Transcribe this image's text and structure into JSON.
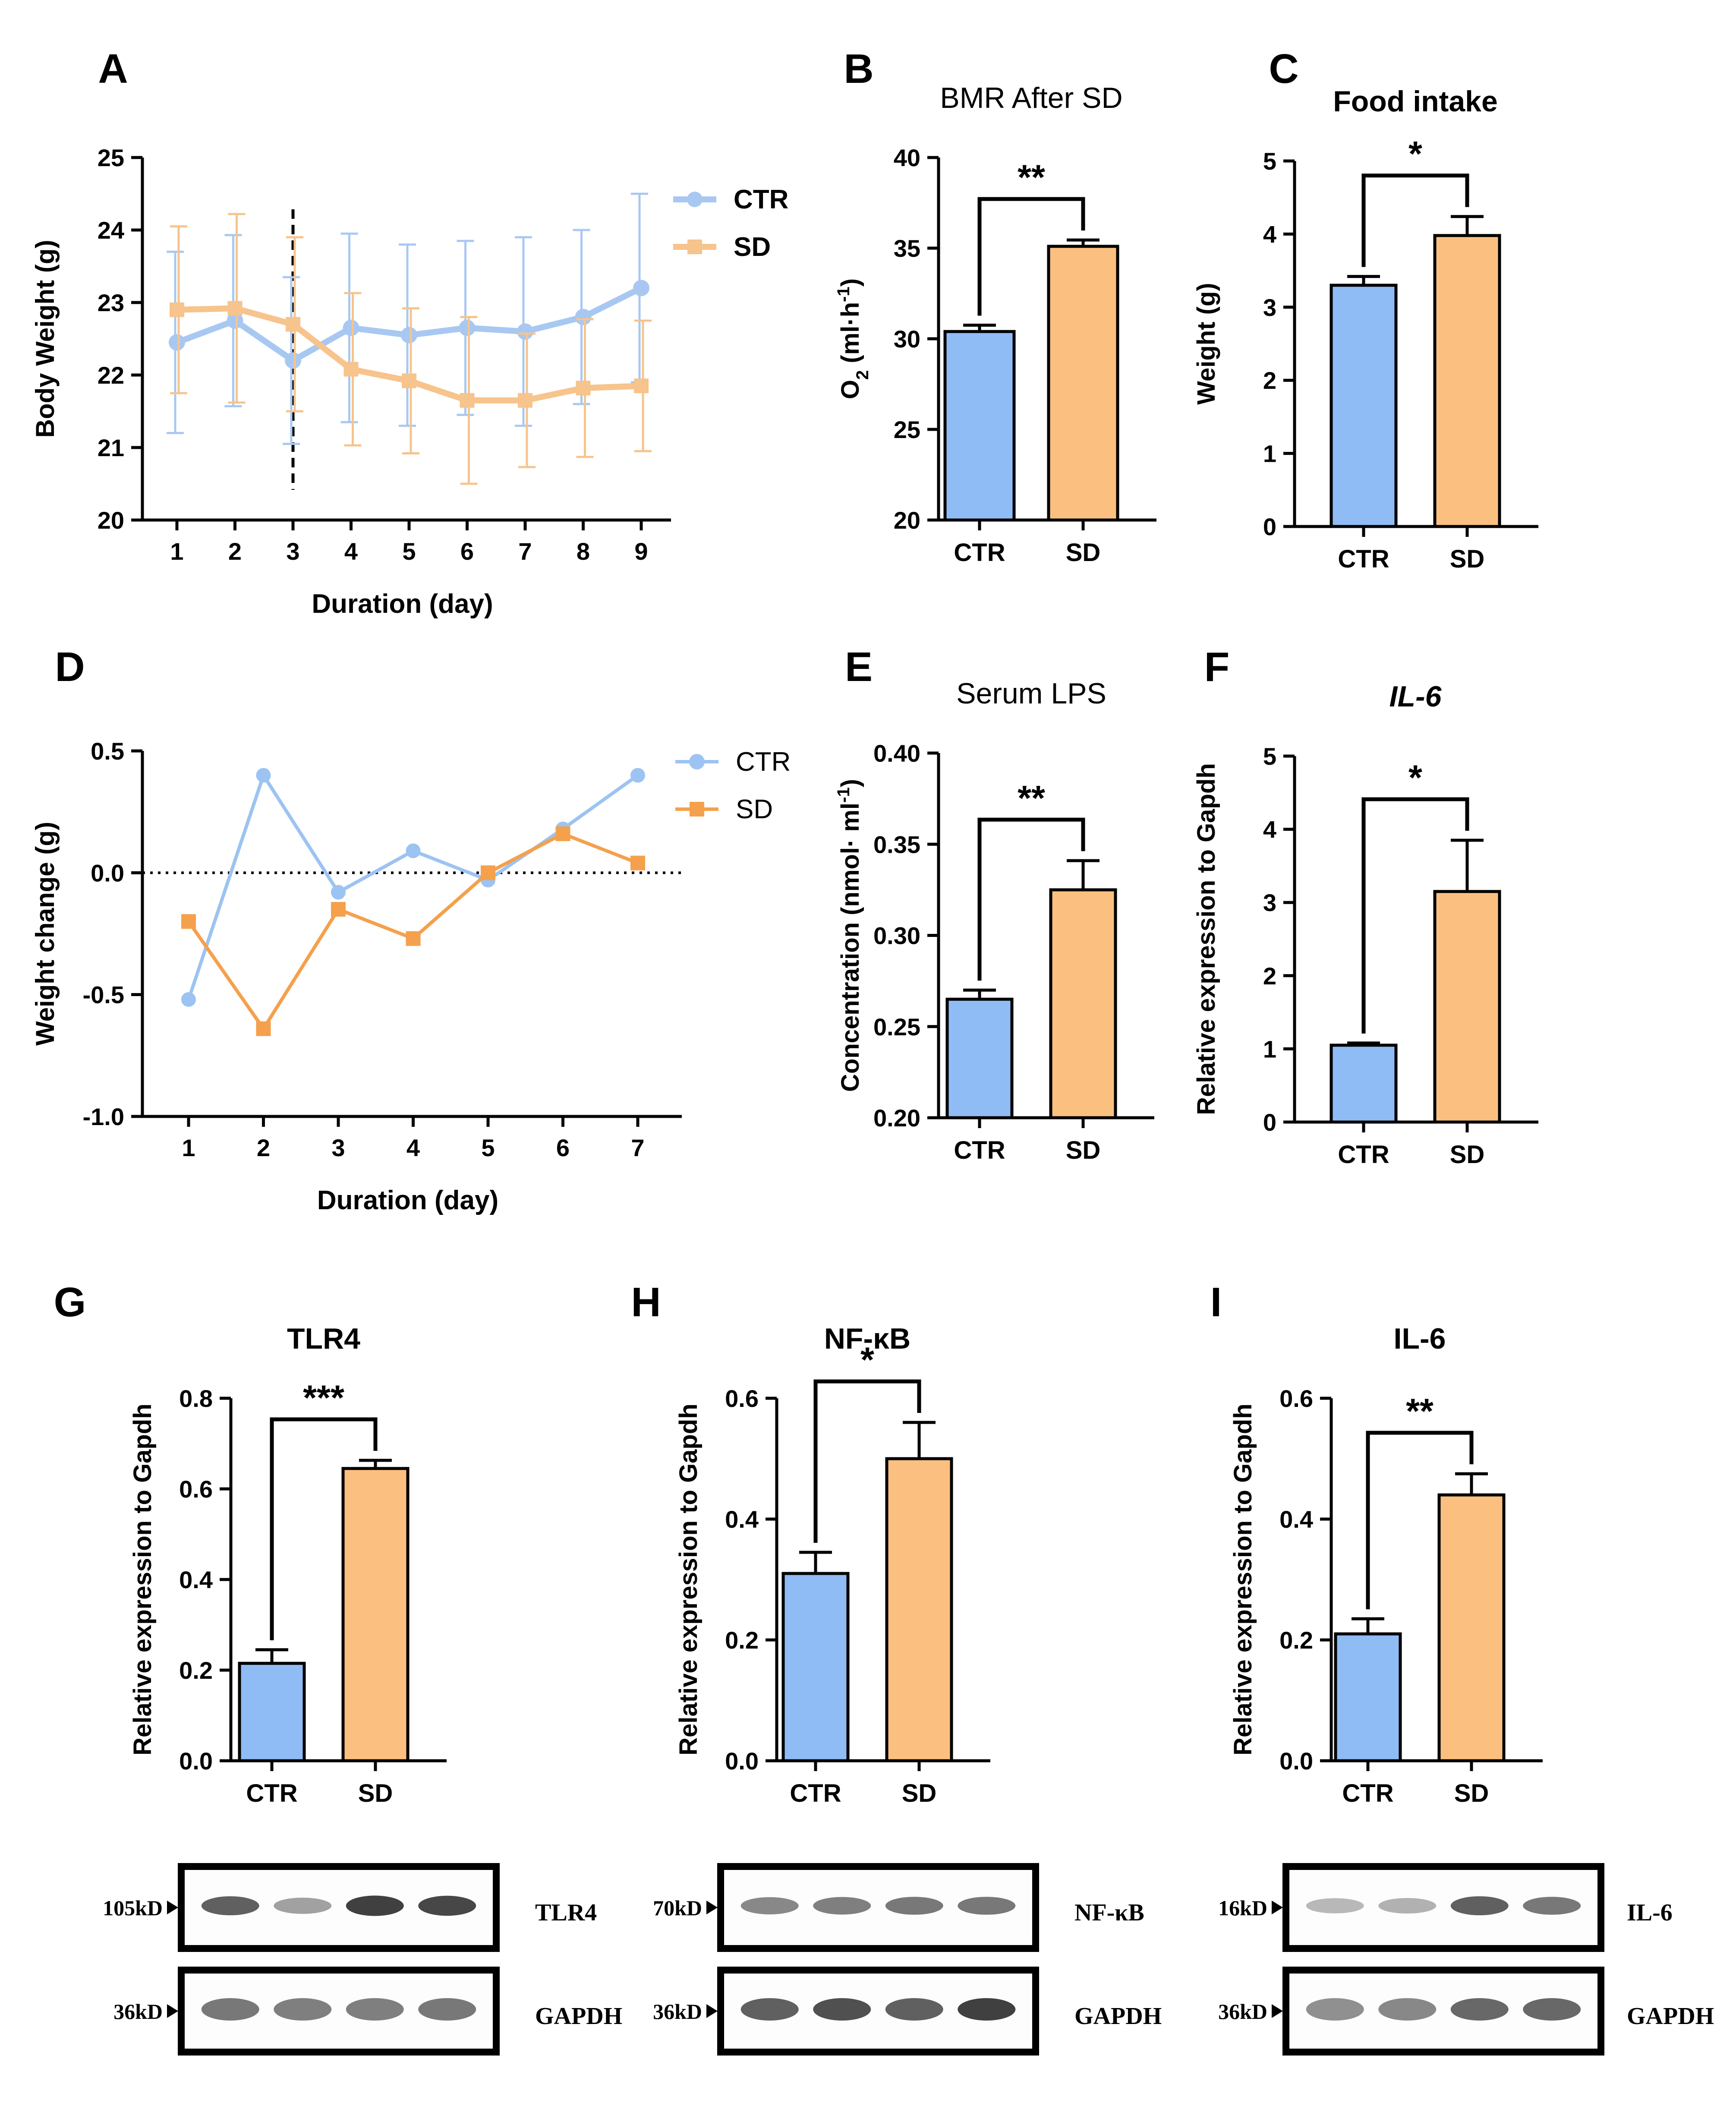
{
  "colors": {
    "ctr": "#90bcf5",
    "sd": "#fbc080",
    "ctr_line": "#a8c8f2",
    "sd_line": "#f6c48c",
    "d_ctr": "#9cc3f2",
    "d_sd": "#f5a04c"
  },
  "chart_data": [
    {
      "id": "A",
      "panel_label": "A",
      "type": "line",
      "title": "",
      "xlabel": "Duration (day)",
      "ylabel": "Body Weight (g)",
      "x": [
        1,
        2,
        3,
        4,
        5,
        6,
        7,
        8,
        9
      ],
      "xticks": [
        "1",
        "2",
        "3",
        "4",
        "5",
        "6",
        "7",
        "8",
        "9"
      ],
      "ylim": [
        20,
        25
      ],
      "yticks": [
        "20",
        "21",
        "22",
        "23",
        "24",
        "25"
      ],
      "vline_x": 3,
      "legend": [
        "CTR",
        "SD"
      ],
      "series": [
        {
          "name": "CTR",
          "values": [
            22.45,
            22.75,
            22.2,
            22.65,
            22.55,
            22.65,
            22.6,
            22.8,
            23.2
          ],
          "err": [
            1.25,
            1.18,
            1.15,
            1.3,
            1.25,
            1.2,
            1.3,
            1.2,
            1.3
          ]
        },
        {
          "name": "SD",
          "values": [
            22.9,
            22.92,
            22.7,
            22.08,
            21.92,
            21.65,
            21.65,
            21.82,
            21.85
          ],
          "err": [
            1.15,
            1.3,
            1.2,
            1.05,
            1.0,
            1.15,
            0.92,
            0.95,
            0.9
          ]
        }
      ]
    },
    {
      "id": "B",
      "panel_label": "B",
      "type": "bar",
      "title": "BMR After SD",
      "ylabel": "O2 (ml·h-1)",
      "ylabel_main": "O",
      "ylabel_sub": "2",
      "ylabel_rest": " (ml·h",
      "ylabel_sup": "-1",
      "ylabel_end": ")",
      "categories": [
        "CTR",
        "SD"
      ],
      "values": [
        30.4,
        35.1
      ],
      "err": [
        0.35,
        0.35
      ],
      "ylim": [
        20,
        40
      ],
      "yticks": [
        "20",
        "25",
        "30",
        "35",
        "40"
      ],
      "significance": "**"
    },
    {
      "id": "C",
      "panel_label": "C",
      "type": "bar",
      "title": "Food intake",
      "ylabel": "Weight (g)",
      "categories": [
        "CTR",
        "SD"
      ],
      "values": [
        3.3,
        3.98
      ],
      "err": [
        0.12,
        0.26
      ],
      "ylim": [
        0,
        5
      ],
      "yticks": [
        "0",
        "1",
        "2",
        "3",
        "4",
        "5"
      ],
      "significance": "*"
    },
    {
      "id": "D",
      "panel_label": "D",
      "type": "line",
      "title": "",
      "xlabel": "Duration (day)",
      "ylabel": "Weight change (g)",
      "x": [
        1,
        2,
        3,
        4,
        5,
        6,
        7
      ],
      "xticks": [
        "1",
        "2",
        "3",
        "4",
        "5",
        "6",
        "7"
      ],
      "ylim": [
        -1.0,
        0.5
      ],
      "yticks": [
        "-1.0",
        "-0.5",
        "0.0",
        "0.5"
      ],
      "hline_y": 0,
      "legend": [
        "CTR",
        "SD"
      ],
      "series": [
        {
          "name": "CTR",
          "values": [
            -0.52,
            0.4,
            -0.08,
            0.09,
            -0.03,
            0.18,
            0.4
          ]
        },
        {
          "name": "SD",
          "values": [
            -0.2,
            -0.64,
            -0.15,
            -0.27,
            0.0,
            0.16,
            0.04
          ]
        }
      ]
    },
    {
      "id": "E",
      "panel_label": "E",
      "type": "bar",
      "title": "Serum LPS",
      "ylabel": "Concentration (nmol· ml-1)",
      "ylabel_main": "Concentration (nmol· ml",
      "ylabel_sup": "-1",
      "ylabel_end": ")",
      "categories": [
        "CTR",
        "SD"
      ],
      "values": [
        0.265,
        0.325
      ],
      "err": [
        0.005,
        0.016
      ],
      "ylim": [
        0.2,
        0.4
      ],
      "yticks": [
        "0.20",
        "0.25",
        "0.30",
        "0.35",
        "0.40"
      ],
      "significance": "**"
    },
    {
      "id": "F",
      "panel_label": "F",
      "type": "bar",
      "title": "IL-6",
      "title_italic": true,
      "ylabel": "Relative expression to Gapdh",
      "categories": [
        "CTR",
        "SD"
      ],
      "values": [
        1.05,
        3.15
      ],
      "err": [
        0.03,
        0.7
      ],
      "ylim": [
        0,
        5
      ],
      "yticks": [
        "0",
        "1",
        "2",
        "3",
        "4",
        "5"
      ],
      "significance": "*"
    },
    {
      "id": "G",
      "panel_label": "G",
      "type": "bar",
      "title": "TLR4",
      "ylabel": "Relative expression to Gapdh",
      "categories": [
        "CTR",
        "SD"
      ],
      "values": [
        0.215,
        0.645
      ],
      "err": [
        0.03,
        0.018
      ],
      "ylim": [
        0,
        0.8
      ],
      "yticks": [
        "0.0",
        "0.2",
        "0.4",
        "0.6",
        "0.8"
      ],
      "significance": "***"
    },
    {
      "id": "H",
      "panel_label": "H",
      "type": "bar",
      "title": "NF-κB",
      "ylabel": "Relative expression to Gapdh",
      "categories": [
        "CTR",
        "SD"
      ],
      "values": [
        0.31,
        0.5
      ],
      "err": [
        0.035,
        0.06
      ],
      "ylim": [
        0,
        0.6
      ],
      "yticks": [
        "0.0",
        "0.2",
        "0.4",
        "0.6"
      ],
      "significance": "*"
    },
    {
      "id": "I",
      "panel_label": "I",
      "type": "bar",
      "title": "IL-6",
      "ylabel": "Relative expression to Gapdh",
      "categories": [
        "CTR",
        "SD"
      ],
      "values": [
        0.21,
        0.44
      ],
      "err": [
        0.025,
        0.035
      ],
      "ylim": [
        0,
        0.6
      ],
      "yticks": [
        "0.0",
        "0.2",
        "0.4",
        "0.6"
      ],
      "significance": "**"
    }
  ],
  "blots": [
    {
      "id": "G",
      "top": {
        "marker": "105kD",
        "name": "TLR4",
        "intensity": [
          0.75,
          0.35,
          0.95,
          0.9
        ]
      },
      "bottom": {
        "marker": "36kD",
        "name": "GAPDH",
        "intensity": [
          0.6,
          0.55,
          0.55,
          0.6
        ]
      }
    },
    {
      "id": "H",
      "top": {
        "marker": "70kD",
        "name": "NF-κB",
        "intensity": [
          0.5,
          0.55,
          0.6,
          0.6
        ]
      },
      "bottom": {
        "marker": "36kD",
        "name": "GAPDH",
        "intensity": [
          0.75,
          0.85,
          0.75,
          0.95
        ]
      }
    },
    {
      "id": "I",
      "top": {
        "marker": "16kD",
        "name": "IL-6",
        "intensity": [
          0.2,
          0.25,
          0.75,
          0.6
        ]
      },
      "bottom": {
        "marker": "36kD",
        "name": "GAPDH",
        "intensity": [
          0.45,
          0.5,
          0.7,
          0.7
        ]
      }
    }
  ]
}
